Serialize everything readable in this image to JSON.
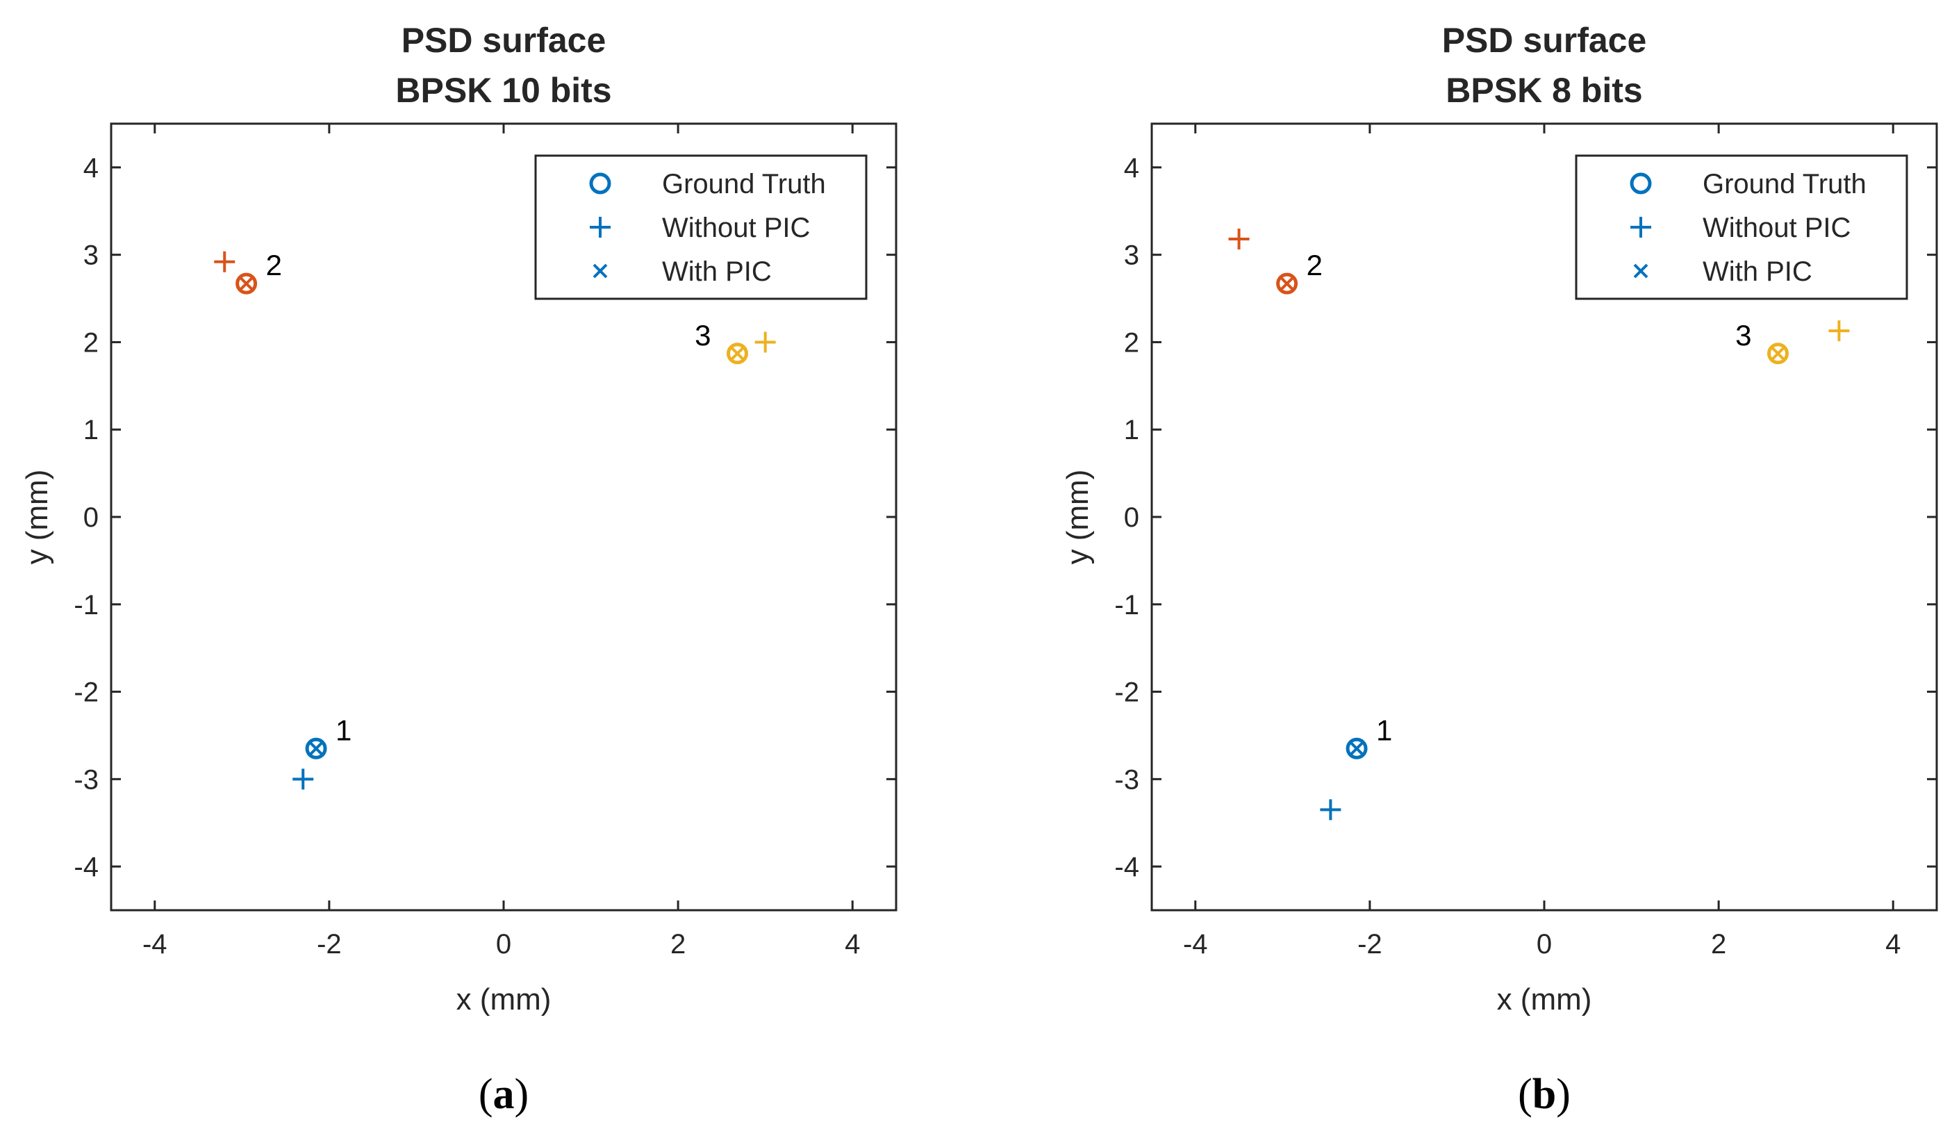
{
  "chart_data": [
    {
      "type": "scatter",
      "title": [
        "PSD surface",
        "BPSK 10 bits"
      ],
      "xlabel": "x (mm)",
      "ylabel": "y (mm)",
      "xlim": [
        -4.5,
        4.5
      ],
      "ylim": [
        -4.5,
        4.5
      ],
      "xticks": [
        -4,
        -2,
        0,
        2,
        4
      ],
      "yticks": [
        -4,
        -3,
        -2,
        -1,
        0,
        1,
        2,
        3,
        4
      ],
      "grid": false,
      "legend_position": "top-right",
      "caption": {
        "open": "(",
        "letter": "a",
        "close": ")"
      },
      "legend": [
        {
          "label": "Ground Truth",
          "marker": "circle",
          "color": "#0072BD"
        },
        {
          "label": "Without PIC",
          "marker": "plus",
          "color": "#0072BD"
        },
        {
          "label": "With PIC",
          "marker": "cross",
          "color": "#0072BD"
        }
      ],
      "points": [
        {
          "id": "1",
          "color": "#0072BD",
          "ground_truth": [
            -2.15,
            -2.65
          ],
          "with_pic": [
            -2.15,
            -2.65
          ],
          "without_pic": [
            -2.3,
            -3.0
          ]
        },
        {
          "id": "2",
          "color": "#D95319",
          "ground_truth": [
            -2.95,
            2.67
          ],
          "with_pic": [
            -2.95,
            2.67
          ],
          "without_pic": [
            -3.2,
            2.92
          ]
        },
        {
          "id": "3",
          "color": "#EDB120",
          "ground_truth": [
            2.68,
            1.87
          ],
          "with_pic": [
            2.68,
            1.87
          ],
          "without_pic": [
            3.0,
            2.0
          ]
        }
      ]
    },
    {
      "type": "scatter",
      "title": [
        "PSD surface",
        "BPSK 8 bits"
      ],
      "xlabel": "x (mm)",
      "ylabel": "y (mm)",
      "xlim": [
        -4.5,
        4.5
      ],
      "ylim": [
        -4.5,
        4.5
      ],
      "xticks": [
        -4,
        -2,
        0,
        2,
        4
      ],
      "yticks": [
        -4,
        -3,
        -2,
        -1,
        0,
        1,
        2,
        3,
        4
      ],
      "grid": false,
      "legend_position": "top-right",
      "caption": {
        "open": "(",
        "letter": "b",
        "close": ")"
      },
      "legend": [
        {
          "label": "Ground Truth",
          "marker": "circle",
          "color": "#0072BD"
        },
        {
          "label": "Without PIC",
          "marker": "plus",
          "color": "#0072BD"
        },
        {
          "label": "With PIC",
          "marker": "cross",
          "color": "#0072BD"
        }
      ],
      "points": [
        {
          "id": "1",
          "color": "#0072BD",
          "ground_truth": [
            -2.15,
            -2.65
          ],
          "with_pic": [
            -2.15,
            -2.65
          ],
          "without_pic": [
            -2.45,
            -3.35
          ]
        },
        {
          "id": "2",
          "color": "#D95319",
          "ground_truth": [
            -2.95,
            2.67
          ],
          "with_pic": [
            -2.95,
            2.67
          ],
          "without_pic": [
            -3.5,
            3.18
          ]
        },
        {
          "id": "3",
          "color": "#EDB120",
          "ground_truth": [
            2.68,
            1.87
          ],
          "with_pic": [
            2.68,
            1.87
          ],
          "without_pic": [
            3.38,
            2.13
          ]
        }
      ]
    }
  ]
}
